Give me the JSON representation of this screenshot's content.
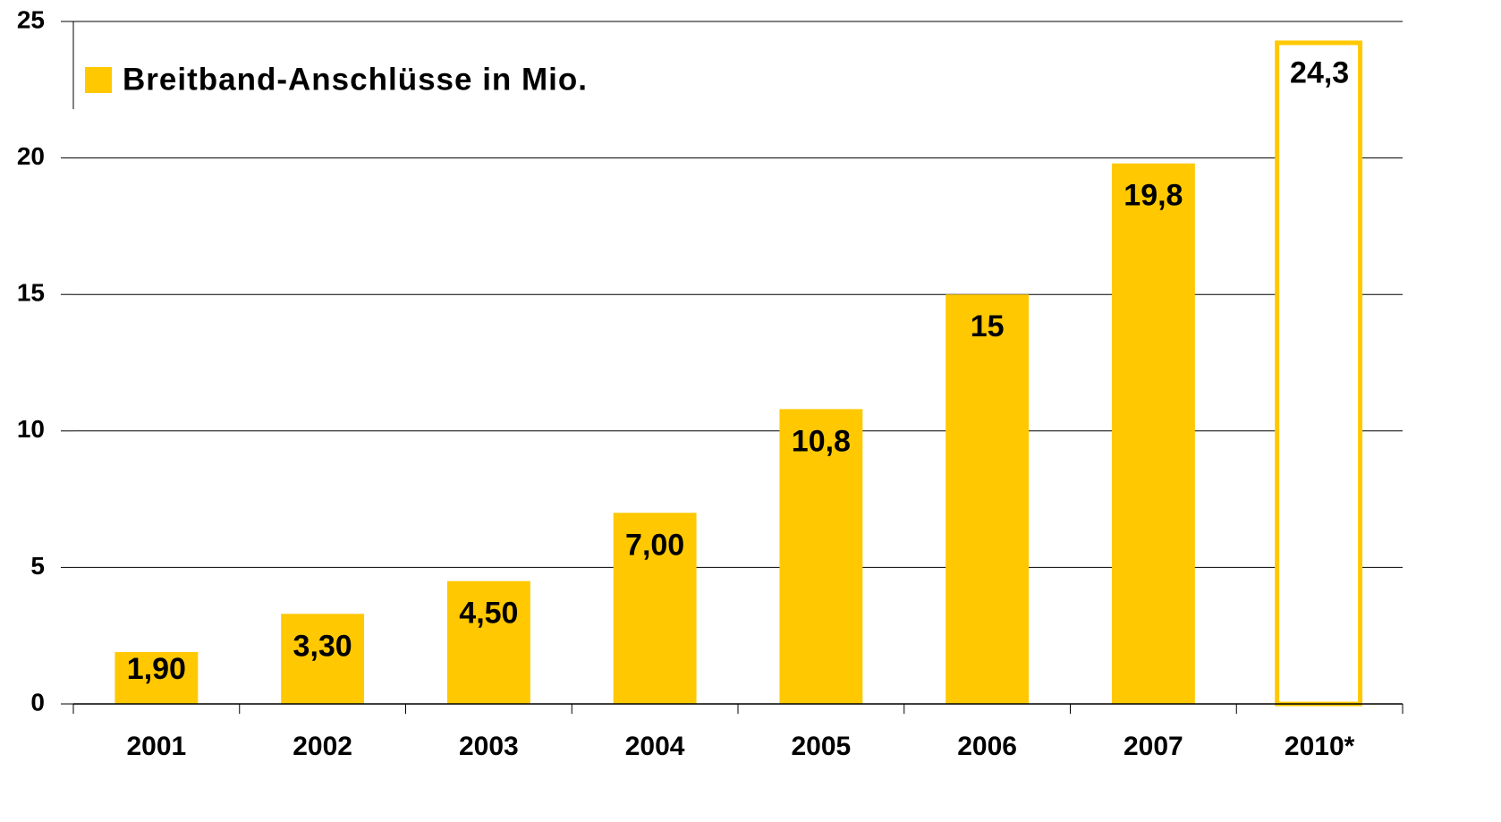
{
  "chart_data": {
    "type": "bar",
    "legend": "Breitband-Anschlüsse in Mio.",
    "categories": [
      "2001",
      "2002",
      "2003",
      "2004",
      "2005",
      "2006",
      "2007",
      "2010*"
    ],
    "values": [
      1.9,
      3.3,
      4.5,
      7.0,
      10.8,
      15,
      19.8,
      24.3
    ],
    "value_labels": [
      "1,90",
      "3,30",
      "4,50",
      "7,00",
      "10,8",
      "15",
      "19,8",
      "24,3"
    ],
    "outlined": [
      false,
      false,
      false,
      false,
      false,
      false,
      false,
      true
    ],
    "color": "#ffc800",
    "ylim": [
      0,
      25
    ],
    "yticks": [
      0,
      5,
      10,
      15,
      20,
      25
    ],
    "grid": true,
    "legend_position": "upper left"
  }
}
